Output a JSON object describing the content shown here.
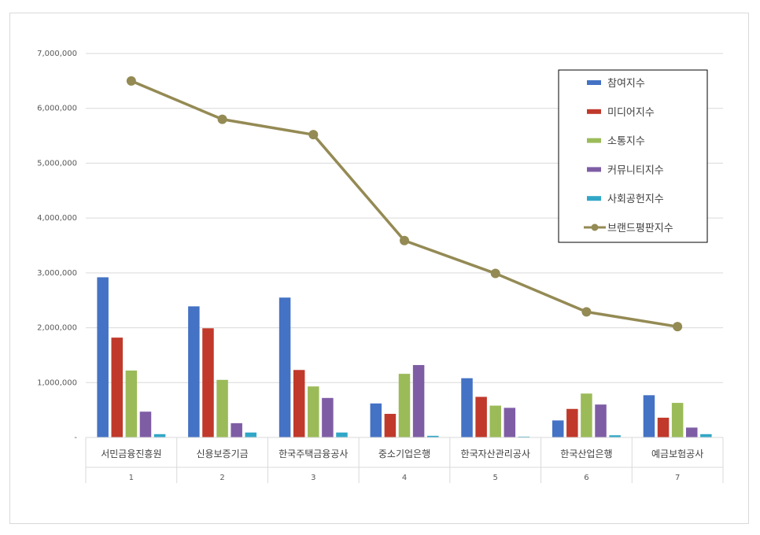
{
  "chart_data": {
    "type": "bar",
    "categories": [
      "서민금융진흥원",
      "신용보증기금",
      "한국주택금융공사",
      "중소기업은행",
      "한국자산관리공사",
      "한국산업은행",
      "예금보험공사"
    ],
    "ranks": [
      "1",
      "2",
      "3",
      "4",
      "5",
      "6",
      "7"
    ],
    "series": [
      {
        "name": "참여지수",
        "kind": "bar",
        "color": "#4472C4",
        "values": [
          2920000,
          2390000,
          2550000,
          620000,
          1080000,
          310000,
          770000
        ]
      },
      {
        "name": "미디어지수",
        "kind": "bar",
        "color": "#C0392B",
        "values": [
          1820000,
          1990000,
          1230000,
          430000,
          740000,
          520000,
          360000
        ]
      },
      {
        "name": "소통지수",
        "kind": "bar",
        "color": "#9BBB59",
        "values": [
          1220000,
          1050000,
          930000,
          1160000,
          580000,
          800000,
          630000
        ]
      },
      {
        "name": "커뮤니티지수",
        "kind": "bar",
        "color": "#7F5DA5",
        "values": [
          470000,
          260000,
          720000,
          1320000,
          540000,
          600000,
          180000
        ]
      },
      {
        "name": "사회공헌지수",
        "kind": "bar",
        "color": "#31A7C7",
        "values": [
          60000,
          90000,
          90000,
          30000,
          15000,
          40000,
          60000
        ]
      },
      {
        "name": "브랜드평판지수",
        "kind": "line",
        "color": "#948A54",
        "values": [
          6500000,
          5800000,
          5520000,
          3590000,
          2990000,
          2290000,
          2020000
        ]
      }
    ],
    "ylim": [
      0,
      7000000
    ],
    "yticks": [
      "-",
      "1,000,000",
      "2,000,000",
      "3,000,000",
      "4,000,000",
      "5,000,000",
      "6,000,000",
      "7,000,000"
    ],
    "grid": true,
    "legend_position": "right"
  }
}
